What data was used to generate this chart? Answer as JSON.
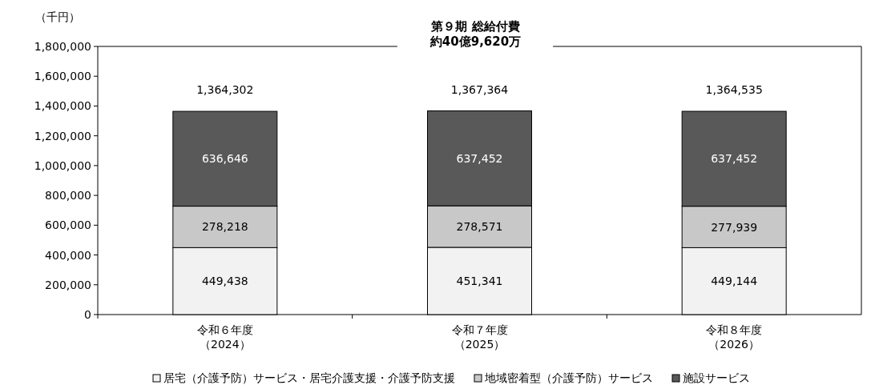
{
  "chart_data": {
    "type": "bar",
    "stacked": true,
    "title": "第９期 総給付費約40億9,620万",
    "ylabel": "（千円）",
    "categories": [
      "令和６年度（2024）",
      "令和７年度（2025）",
      "令和８年度（2026）"
    ],
    "series": [
      {
        "name": "居宅（介護予防）サービス・居宅介護支援・介護予防支援",
        "color": "#f2f2f2",
        "values": [
          449438,
          451341,
          449144
        ],
        "value_labels": [
          "449,438",
          "451,341",
          "449,144"
        ]
      },
      {
        "name": "地域密着型（介護予防）サービス",
        "color": "#c8c8c8",
        "values": [
          278218,
          278571,
          277939
        ],
        "value_labels": [
          "278,218",
          "278,571",
          "277,939"
        ]
      },
      {
        "name": "施設サービス",
        "color": "#595959",
        "values": [
          636646,
          637452,
          637452
        ],
        "value_labels": [
          "636,646",
          "637,452",
          "637,452"
        ]
      }
    ],
    "totals": [
      "1,364,302",
      "1,367,364",
      "1,364,535"
    ],
    "ylim": [
      0,
      1800000
    ],
    "yticks": [
      0,
      {
        "value": 200000,
        "label": "200,000"
      },
      {
        "value": 400000,
        "label": "400,000"
      },
      {
        "value": 600000,
        "label": "600,000"
      },
      {
        "value": 800000,
        "label": "800,000"
      },
      {
        "value": 1000000,
        "label": "1,000,000"
      },
      {
        "value": 1200000,
        "label": "1,200,000"
      },
      {
        "value": 1400000,
        "label": "1,400,000"
      },
      {
        "value": 1600000,
        "label": "1,600,000"
      },
      {
        "value": 1800000,
        "label": "1,800,000"
      }
    ],
    "grid": false,
    "legend": "bottom"
  }
}
